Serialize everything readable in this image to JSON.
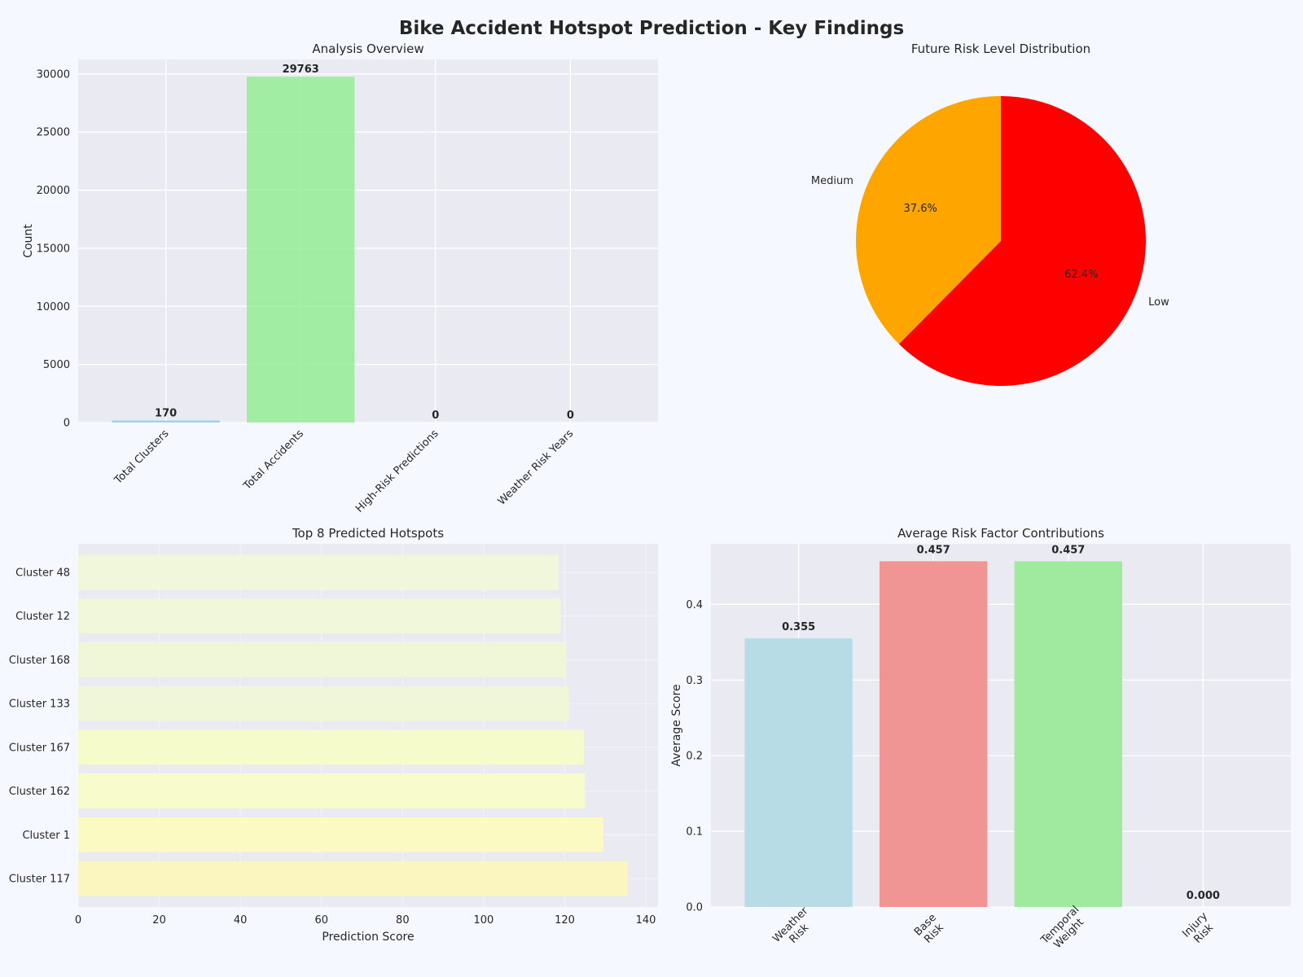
{
  "figure": {
    "title": "Bike Accident Hotspot Prediction - Key Findings",
    "background": "#f5f9ff"
  },
  "chart_data": [
    {
      "id": "overview",
      "type": "bar",
      "title": "Analysis Overview",
      "xlabel": "",
      "ylabel": "Count",
      "categories": [
        "Total Clusters",
        "Total Accidents",
        "High-Risk Predictions",
        "Weather Risk Years"
      ],
      "values": [
        170,
        29763,
        0,
        0
      ],
      "data_labels": [
        "170",
        "29763",
        "0",
        "0"
      ],
      "colors": [
        "#87ceeb",
        "#90ee90",
        "#ff7f7f",
        "#ffa500"
      ],
      "ylim": [
        0,
        31250
      ],
      "yticks": [
        0,
        5000,
        10000,
        15000,
        20000,
        25000,
        30000
      ],
      "ytick_labels": [
        "0",
        "5000",
        "10000",
        "15000",
        "20000",
        "25000",
        "30000"
      ]
    },
    {
      "id": "risk_distribution",
      "type": "pie",
      "title": "Future Risk Level Distribution",
      "labels": [
        "Medium",
        "Low"
      ],
      "values": [
        37.6,
        62.4
      ],
      "pct_labels": [
        "37.6%",
        "62.4%"
      ],
      "colors": [
        "#ffa500",
        "#ff0000"
      ],
      "start_angle": 90
    },
    {
      "id": "hotspots",
      "type": "bar",
      "orientation": "horizontal",
      "title": "Top 8 Predicted Hotspots",
      "xlabel": "Prediction Score",
      "ylabel": "",
      "categories": [
        "Cluster 117",
        "Cluster 1",
        "Cluster 162",
        "Cluster 167",
        "Cluster 133",
        "Cluster 168",
        "Cluster 12",
        "Cluster 48"
      ],
      "values": [
        135.5,
        129.5,
        125.0,
        124.7,
        121.0,
        120.5,
        119.0,
        118.5
      ],
      "colors": [
        "#fbf5c0",
        "#fbfac2",
        "#f8fbcc",
        "#f6fbcc",
        "#f0f7d9",
        "#f0f7d9",
        "#f0f7db",
        "#f0f7db"
      ],
      "xlim": [
        0,
        143
      ],
      "xticks": [
        0,
        20,
        40,
        60,
        80,
        100,
        120,
        140
      ],
      "xtick_labels": [
        "0",
        "20",
        "40",
        "60",
        "80",
        "100",
        "120",
        "140"
      ]
    },
    {
      "id": "risk_factors",
      "type": "bar",
      "title": "Average Risk Factor Contributions",
      "xlabel": "",
      "ylabel": "Average Score",
      "categories": [
        "Weather\nRisk",
        "Base\nRisk",
        "Temporal\nWeight",
        "Injury\nRisk"
      ],
      "values": [
        0.355,
        0.457,
        0.457,
        0.0
      ],
      "data_labels": [
        "0.355",
        "0.457",
        "0.457",
        "0.000"
      ],
      "colors": [
        "#b8dce6",
        "#f09494",
        "#a0eaa0",
        "#e6e6fa"
      ],
      "ylim": [
        0,
        0.48
      ],
      "yticks": [
        0.0,
        0.1,
        0.2,
        0.3,
        0.4
      ],
      "ytick_labels": [
        "0.0",
        "0.1",
        "0.2",
        "0.3",
        "0.4"
      ]
    }
  ]
}
